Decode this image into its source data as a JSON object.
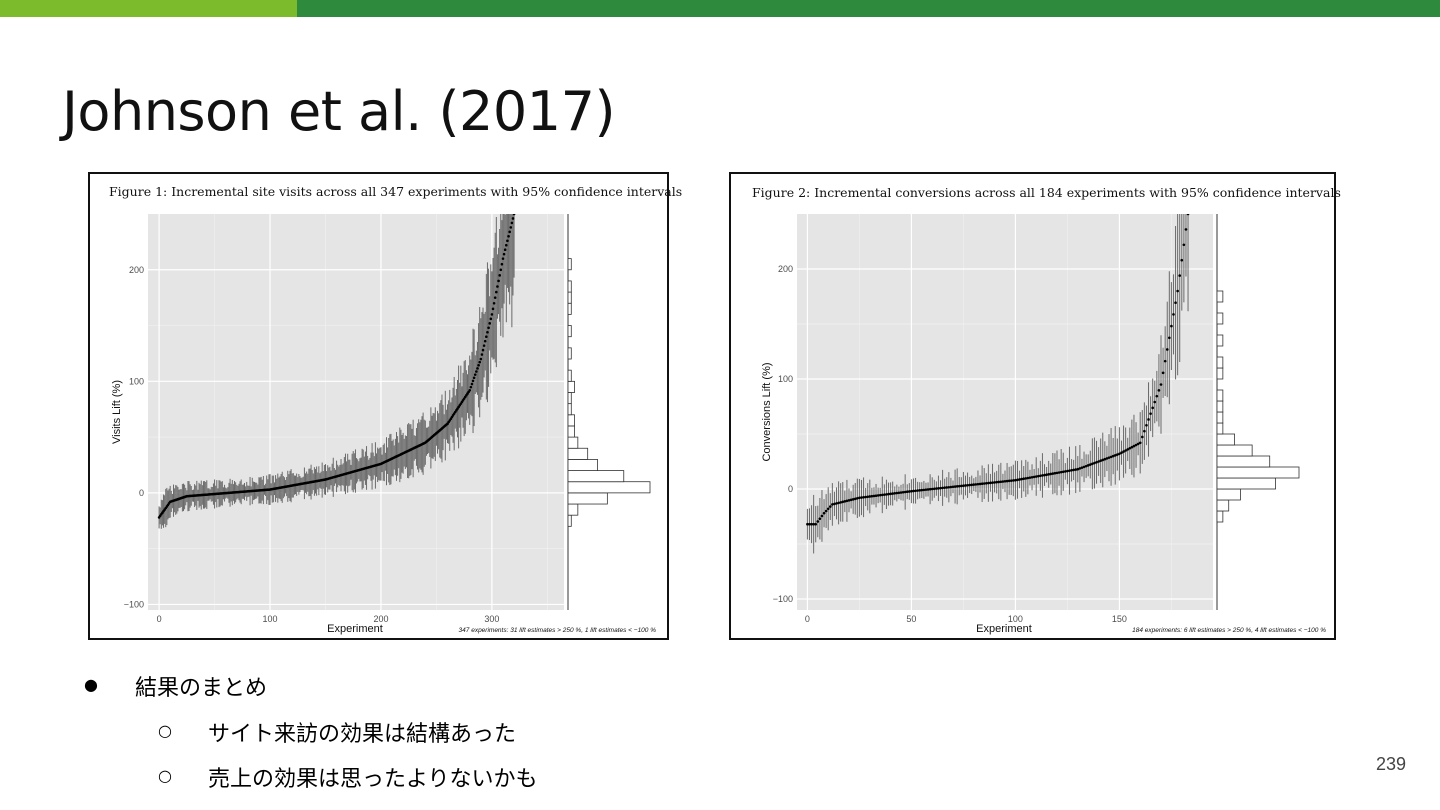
{
  "slide": {
    "title": "Johnson et al. (2017)",
    "page_number": "239",
    "colors": {
      "bar_left": "#7cbb2c",
      "bar_right": "#2e8b3d"
    },
    "bullets": [
      {
        "level": 1,
        "marker": "●",
        "text": "結果のまとめ"
      },
      {
        "level": 2,
        "marker": "○",
        "text": "サイト来訪の効果は結構あった"
      },
      {
        "level": 2,
        "marker": "○",
        "text": "売上の効果は思ったよりないかも"
      }
    ]
  },
  "chart_data": [
    {
      "type": "scatter",
      "title": "Figure 1: Incremental site visits across all 347 experiments with 95% confidence intervals",
      "xlabel": "Experiment",
      "ylabel": "Visits Lift (%)",
      "footnote": "347 experiments: 31 lift estimates > 250 %, 1 lift estimates < −100 %",
      "x_ticks": [
        0,
        100,
        200,
        300
      ],
      "y_ticks": [
        -100,
        0,
        100,
        200
      ],
      "xlim": [
        -10,
        365
      ],
      "ylim": [
        -105,
        250
      ],
      "n": 347,
      "grid": true,
      "error_bars": "95% confidence intervals",
      "marginal_histogram": "right",
      "sorted_estimate_anchors": {
        "x": [
          0,
          10,
          25,
          50,
          100,
          150,
          200,
          240,
          260,
          280,
          290,
          300,
          310,
          320
        ],
        "y": [
          -22,
          -8,
          -3,
          -1,
          3,
          12,
          26,
          45,
          62,
          92,
          120,
          160,
          210,
          250
        ]
      },
      "histogram_bins": {
        "edges_start": -30,
        "bin_width": 10,
        "counts": [
          1,
          3,
          12,
          25,
          17,
          9,
          6,
          3,
          2,
          2,
          1,
          1,
          2,
          1,
          0,
          1,
          0,
          1,
          0,
          1,
          1,
          1,
          0,
          1
        ]
      }
    },
    {
      "type": "scatter",
      "title": "Figure 2: Incremental conversions across all 184 experiments with 95% confidence intervals",
      "xlabel": "Experiment",
      "ylabel": "Conversions Lift (%)",
      "footnote": "184 experiments: 6 lift estimates > 250 %, 4 lift estimates < −100 %",
      "x_ticks": [
        0,
        50,
        100,
        150
      ],
      "y_ticks": [
        -100,
        0,
        100,
        200
      ],
      "xlim": [
        -5,
        195
      ],
      "ylim": [
        -110,
        250
      ],
      "n": 184,
      "grid": true,
      "error_bars": "95% confidence intervals",
      "marginal_histogram": "right",
      "sorted_estimate_anchors": {
        "x": [
          4,
          8,
          12,
          25,
          50,
          100,
          130,
          150,
          160,
          170,
          178,
          183
        ],
        "y": [
          -32,
          -22,
          -14,
          -8,
          -2,
          8,
          18,
          32,
          42,
          95,
          180,
          250
        ]
      },
      "histogram_bins": {
        "edges_start": -30,
        "bin_width": 10,
        "counts": [
          1,
          2,
          4,
          10,
          14,
          9,
          6,
          3,
          1,
          1,
          1,
          1,
          0,
          1,
          1,
          0,
          1,
          0,
          1,
          0,
          1
        ]
      }
    }
  ]
}
